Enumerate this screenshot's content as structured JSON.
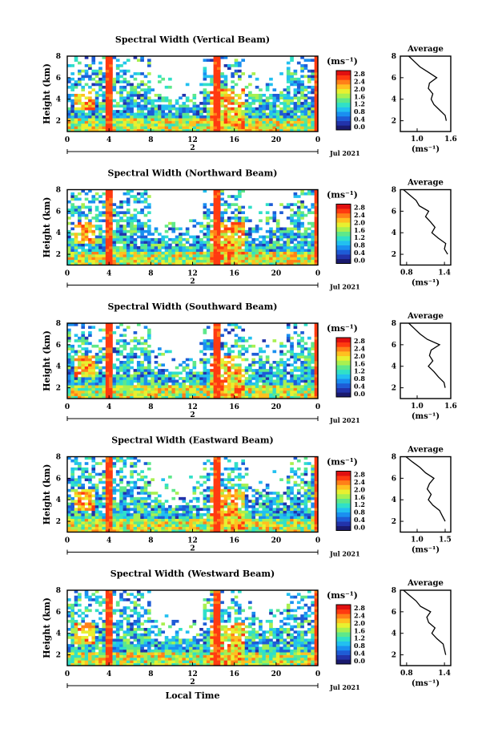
{
  "chart_data": {
    "type": "heatmap",
    "colorbar": {
      "title": "(ms⁻¹)",
      "ticks": [
        "2.8",
        "2.4",
        "2.0",
        "1.6",
        "1.2",
        "0.8",
        "0.4",
        "0.0"
      ],
      "range": [
        0.0,
        2.8
      ],
      "colors": [
        "#1a1a6e",
        "#2233aa",
        "#1e5cd6",
        "#1a8ff0",
        "#22c0f0",
        "#30e0c8",
        "#5ee88a",
        "#a8f050",
        "#e8f030",
        "#ffc020",
        "#ff8018",
        "#ff3a10",
        "#e01010"
      ]
    },
    "x_tick_labels": [
      "0",
      "4",
      "8",
      "12",
      "16",
      "20",
      "0"
    ],
    "x_range": [
      0,
      24
    ],
    "date_label": "2",
    "month_label": "Jul 2021",
    "y_tick_labels": [
      "2",
      "4",
      "6",
      "8"
    ],
    "y_range": [
      1,
      8
    ],
    "ylabel": "Height (km)",
    "xlabel": "Local Time",
    "profile_title": "Average",
    "profile_xlabel": "(ms⁻¹)",
    "panels": [
      {
        "title": "Spectral Width (Vertical Beam)",
        "profile_ticks": [
          "1.0",
          "1.6"
        ],
        "profile_xlim": [
          0.7,
          1.6
        ],
        "profile": [
          [
            2.0,
            1.52
          ],
          [
            2.5,
            1.5
          ],
          [
            3.0,
            1.4
          ],
          [
            3.5,
            1.3
          ],
          [
            4.0,
            1.25
          ],
          [
            4.5,
            1.28
          ],
          [
            5.0,
            1.2
          ],
          [
            5.5,
            1.22
          ],
          [
            6.0,
            1.35
          ],
          [
            6.5,
            1.2
          ],
          [
            7.0,
            1.05
          ],
          [
            7.5,
            0.95
          ],
          [
            8.0,
            0.85
          ]
        ]
      },
      {
        "title": "Spectral Width (Northward Beam)",
        "profile_ticks": [
          "0.8",
          "1.4"
        ],
        "profile_xlim": [
          0.7,
          1.5
        ],
        "profile": [
          [
            2.0,
            1.45
          ],
          [
            2.5,
            1.4
          ],
          [
            3.0,
            1.42
          ],
          [
            3.5,
            1.3
          ],
          [
            4.0,
            1.2
          ],
          [
            4.5,
            1.25
          ],
          [
            5.0,
            1.18
          ],
          [
            5.5,
            1.1
          ],
          [
            6.0,
            1.15
          ],
          [
            6.5,
            1.0
          ],
          [
            7.0,
            0.95
          ],
          [
            7.5,
            0.85
          ],
          [
            8.0,
            0.75
          ]
        ]
      },
      {
        "title": "Spectral Width (Southward Beam)",
        "profile_ticks": [
          "1.0",
          "1.6"
        ],
        "profile_xlim": [
          0.7,
          1.6
        ],
        "profile": [
          [
            2.0,
            1.5
          ],
          [
            2.5,
            1.48
          ],
          [
            3.0,
            1.38
          ],
          [
            3.5,
            1.3
          ],
          [
            4.0,
            1.2
          ],
          [
            4.5,
            1.28
          ],
          [
            5.0,
            1.22
          ],
          [
            5.5,
            1.25
          ],
          [
            6.0,
            1.4
          ],
          [
            6.5,
            1.18
          ],
          [
            7.0,
            1.05
          ],
          [
            7.5,
            0.95
          ],
          [
            8.0,
            0.85
          ]
        ]
      },
      {
        "title": "Spectral Width (Eastward Beam)",
        "profile_ticks": [
          "1.0",
          "1.5"
        ],
        "profile_xlim": [
          0.7,
          1.6
        ],
        "profile": [
          [
            2.0,
            1.5
          ],
          [
            2.5,
            1.45
          ],
          [
            3.0,
            1.4
          ],
          [
            3.5,
            1.28
          ],
          [
            4.0,
            1.2
          ],
          [
            4.5,
            1.25
          ],
          [
            5.0,
            1.18
          ],
          [
            5.5,
            1.22
          ],
          [
            6.0,
            1.3
          ],
          [
            6.5,
            1.15
          ],
          [
            7.0,
            1.05
          ],
          [
            7.5,
            0.92
          ],
          [
            8.0,
            0.8
          ]
        ]
      },
      {
        "title": "Spectral Width (Westward Beam)",
        "profile_ticks": [
          "0.8",
          "1.4"
        ],
        "profile_xlim": [
          0.7,
          1.5
        ],
        "profile": [
          [
            2.0,
            1.42
          ],
          [
            2.5,
            1.4
          ],
          [
            3.0,
            1.38
          ],
          [
            3.5,
            1.28
          ],
          [
            4.0,
            1.2
          ],
          [
            4.5,
            1.25
          ],
          [
            5.0,
            1.15
          ],
          [
            5.5,
            1.12
          ],
          [
            6.0,
            1.18
          ],
          [
            6.5,
            1.02
          ],
          [
            7.0,
            0.95
          ],
          [
            7.5,
            0.85
          ],
          [
            8.0,
            0.75
          ]
        ]
      }
    ]
  }
}
